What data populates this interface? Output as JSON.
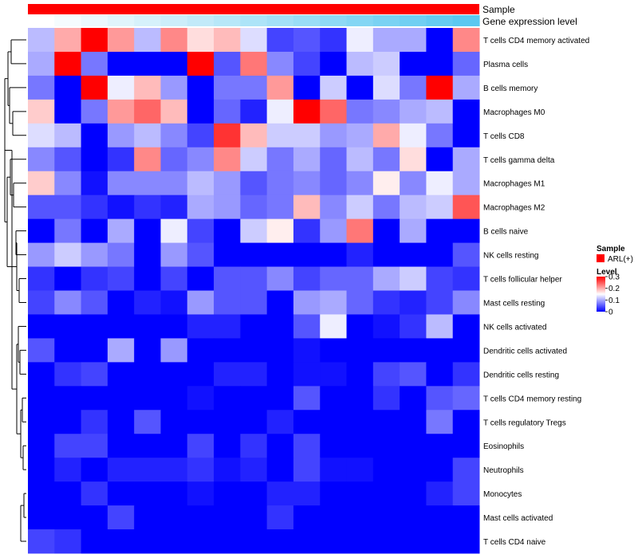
{
  "chart_data": {
    "type": "heatmap",
    "title": "",
    "annotations": [
      {
        "name": "Sample",
        "colors": [
          "#ff0000"
        ]
      },
      {
        "name": "Gene expression level",
        "colors": [
          "#ffffff",
          "#5bc8f0"
        ]
      }
    ],
    "legend": {
      "sample": {
        "title": "Sample",
        "entries": [
          {
            "label": "ARL(+)",
            "color": "#ff0000"
          }
        ]
      },
      "level": {
        "title": "Level",
        "ticks": [
          0.3,
          0.2,
          0.1,
          0
        ],
        "tick_labels": [
          "0.3",
          "0.2",
          "0.1",
          "0"
        ],
        "range": [
          0,
          0.3
        ],
        "colors": {
          "low": "#0000ff",
          "mid": "#ffffff",
          "high": "#ff0000"
        }
      }
    },
    "columns": 17,
    "rows": [
      "T cells CD4 memory activated",
      "Plasma cells",
      "B cells memory",
      "Macrophages M0",
      "T cells CD8",
      "T cells gamma delta",
      "Macrophages M1",
      "Macrophages M2",
      "B cells naive",
      "NK cells resting",
      "T cells follicular helper",
      "Mast cells resting",
      "NK cells activated",
      "Dendritic cells activated",
      "Dendritic cells resting",
      "T cells CD4 memory resting",
      "T cells regulatory  Tregs",
      "Eosinophils",
      "Neutrophils",
      "Monocytes",
      "Mast cells activated",
      "T cells CD4 naive"
    ],
    "values": [
      [
        0.11,
        0.2,
        0.3,
        0.21,
        0.11,
        0.22,
        0.17,
        0.19,
        0.13,
        0.04,
        0.05,
        0.03,
        0.14,
        0.1,
        0.1,
        0.0,
        0.22
      ],
      [
        0.1,
        0.3,
        0.07,
        0.0,
        0.0,
        0.0,
        0.3,
        0.05,
        0.23,
        0.08,
        0.04,
        0.0,
        0.11,
        0.12,
        0.0,
        0.0,
        0.06
      ],
      [
        0.07,
        0.0,
        0.3,
        0.14,
        0.19,
        0.09,
        0.0,
        0.07,
        0.07,
        0.21,
        0.0,
        0.12,
        0.0,
        0.13,
        0.07,
        0.3,
        0.1
      ],
      [
        0.18,
        0.0,
        0.07,
        0.21,
        0.24,
        0.19,
        0.0,
        0.06,
        0.02,
        0.14,
        0.3,
        0.24,
        0.07,
        0.08,
        0.1,
        0.11,
        0.0
      ],
      [
        0.13,
        0.11,
        0.0,
        0.09,
        0.11,
        0.08,
        0.04,
        0.27,
        0.19,
        0.12,
        0.12,
        0.09,
        0.1,
        0.2,
        0.14,
        0.07,
        0.0
      ],
      [
        0.08,
        0.05,
        0.0,
        0.03,
        0.22,
        0.06,
        0.08,
        0.22,
        0.12,
        0.07,
        0.1,
        0.06,
        0.11,
        0.07,
        0.17,
        0.0,
        0.1
      ],
      [
        0.18,
        0.08,
        0.01,
        0.08,
        0.08,
        0.08,
        0.11,
        0.09,
        0.05,
        0.07,
        0.08,
        0.06,
        0.08,
        0.16,
        0.08,
        0.14,
        0.1
      ],
      [
        0.05,
        0.05,
        0.03,
        0.01,
        0.03,
        0.02,
        0.1,
        0.09,
        0.06,
        0.07,
        0.19,
        0.08,
        0.12,
        0.07,
        0.11,
        0.12,
        0.25
      ],
      [
        0.0,
        0.07,
        0.0,
        0.1,
        0.0,
        0.14,
        0.04,
        0.0,
        0.12,
        0.16,
        0.03,
        0.09,
        0.23,
        0.0,
        0.1,
        0.0,
        0.0
      ],
      [
        0.09,
        0.12,
        0.09,
        0.07,
        0.0,
        0.09,
        0.05,
        0.0,
        0.0,
        0.0,
        0.0,
        0.0,
        0.02,
        0.0,
        0.0,
        0.0,
        0.05
      ],
      [
        0.03,
        0.0,
        0.03,
        0.04,
        0.0,
        0.04,
        0.0,
        0.05,
        0.05,
        0.08,
        0.04,
        0.06,
        0.06,
        0.1,
        0.12,
        0.04,
        0.03
      ],
      [
        0.04,
        0.08,
        0.05,
        0.0,
        0.02,
        0.01,
        0.09,
        0.05,
        0.05,
        0.0,
        0.09,
        0.1,
        0.06,
        0.03,
        0.02,
        0.04,
        0.08
      ],
      [
        0.0,
        0.0,
        0.0,
        0.0,
        0.0,
        0.0,
        0.02,
        0.02,
        0.0,
        0.0,
        0.05,
        0.14,
        0.0,
        0.01,
        0.03,
        0.11,
        0.0
      ],
      [
        0.05,
        0.0,
        0.0,
        0.1,
        0.0,
        0.09,
        0.0,
        0.0,
        0.0,
        0.0,
        0.01,
        0.0,
        0.0,
        0.0,
        0.0,
        0.0,
        0.0
      ],
      [
        0.0,
        0.03,
        0.04,
        0.0,
        0.0,
        0.0,
        0.0,
        0.02,
        0.02,
        0.0,
        0.01,
        0.01,
        0.0,
        0.04,
        0.05,
        0.0,
        0.03
      ],
      [
        0.0,
        0.0,
        0.0,
        0.0,
        0.0,
        0.0,
        0.01,
        0.0,
        0.0,
        0.0,
        0.05,
        0.0,
        0.0,
        0.03,
        0.0,
        0.05,
        0.06
      ],
      [
        0.0,
        0.0,
        0.03,
        0.0,
        0.05,
        0.0,
        0.0,
        0.0,
        0.0,
        0.02,
        0.0,
        0.0,
        0.0,
        0.0,
        0.0,
        0.07,
        0.0
      ],
      [
        0.0,
        0.04,
        0.04,
        0.0,
        0.0,
        0.0,
        0.04,
        0.0,
        0.03,
        0.0,
        0.04,
        0.0,
        0.0,
        0.0,
        0.0,
        0.0,
        0.0
      ],
      [
        0.0,
        0.02,
        0.0,
        0.02,
        0.02,
        0.02,
        0.03,
        0.01,
        0.02,
        0.0,
        0.04,
        0.01,
        0.01,
        0.0,
        0.0,
        0.0,
        0.04
      ],
      [
        0.0,
        0.0,
        0.03,
        0.0,
        0.0,
        0.0,
        0.01,
        0.0,
        0.0,
        0.02,
        0.02,
        0.0,
        0.0,
        0.0,
        0.0,
        0.02,
        0.04
      ],
      [
        0.0,
        0.0,
        0.0,
        0.04,
        0.0,
        0.0,
        0.0,
        0.0,
        0.0,
        0.03,
        0.0,
        0.0,
        0.0,
        0.0,
        0.0,
        0.0,
        0.0
      ],
      [
        0.04,
        0.03,
        0.0,
        0.0,
        0.0,
        0.0,
        0.0,
        0.0,
        0.0,
        0.0,
        0.0,
        0.0,
        0.0,
        0.0,
        0.0,
        0.0,
        0.0
      ]
    ]
  }
}
